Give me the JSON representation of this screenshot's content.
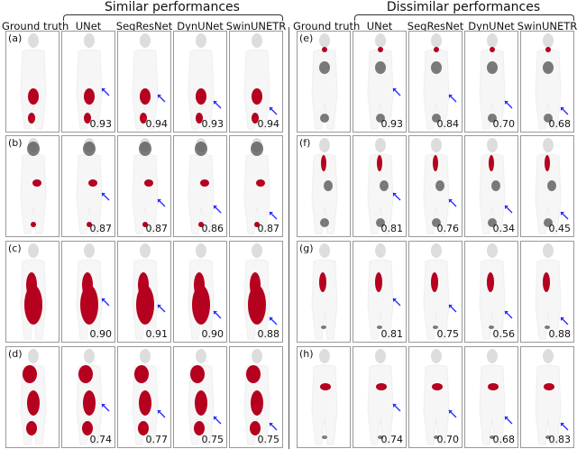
{
  "groups": [
    {
      "title": "Similar performances",
      "columns": [
        "Ground truth",
        "UNet",
        "SegResNet",
        "DynUNet",
        "SwinUNETR"
      ],
      "rows": [
        {
          "label": "(a)",
          "scores": [
            "0.93",
            "0.94",
            "0.93",
            "0.94"
          ]
        },
        {
          "label": "(b)",
          "scores": [
            "0.87",
            "0.87",
            "0.86",
            "0.87"
          ]
        },
        {
          "label": "(c)",
          "scores": [
            "0.90",
            "0.91",
            "0.90",
            "0.88"
          ]
        },
        {
          "label": "(d)",
          "scores": [
            "0.74",
            "0.77",
            "0.75",
            "0.75"
          ]
        }
      ]
    },
    {
      "title": "Dissimilar performances",
      "columns": [
        "Ground truth",
        "UNet",
        "SegResNet",
        "DynUNet",
        "SwinUNETR"
      ],
      "rows": [
        {
          "label": "(e)",
          "scores": [
            "0.93",
            "0.84",
            "0.70",
            "0.68"
          ]
        },
        {
          "label": "(f)",
          "scores": [
            "0.81",
            "0.76",
            "0.34",
            "0.45"
          ]
        },
        {
          "label": "(g)",
          "scores": [
            "0.81",
            "0.75",
            "0.56",
            "0.88"
          ]
        },
        {
          "label": "(h)",
          "scores": [
            "0.74",
            "0.70",
            "0.68",
            "0.83"
          ]
        }
      ]
    }
  ],
  "colors": {
    "segmentation": "#b5001f",
    "arrow": "#2a2aff",
    "scan": "#c8c8c8"
  }
}
